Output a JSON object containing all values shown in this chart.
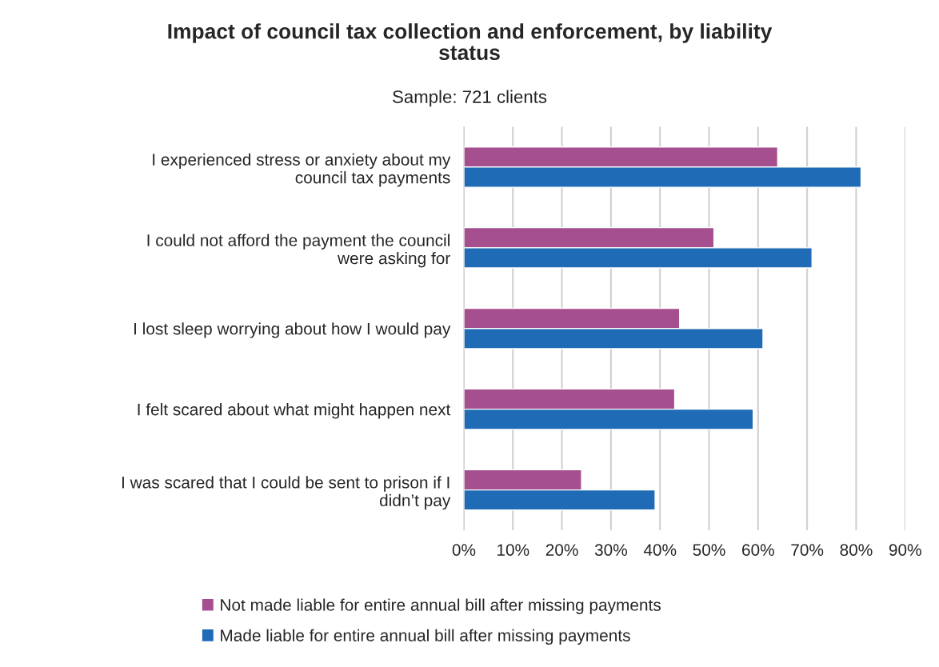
{
  "chart_data": {
    "type": "bar",
    "orientation": "horizontal",
    "title": "Impact of council tax collection and enforcement, by liability\nstatus",
    "subtitle": "Sample: 721 clients",
    "categories": [
      "I experienced stress or anxiety about my\ncouncil tax payments",
      "I could not afford the payment the council\nwere asking for",
      "I lost sleep worrying about how I would pay",
      "I felt scared about what might happen next",
      "I was scared that I could be sent to prison if I\ndidn’t pay"
    ],
    "series": [
      {
        "name": "Not made liable for entire annual bill after missing payments",
        "color": "#a64f8f",
        "values": [
          64,
          51,
          44,
          43,
          24
        ]
      },
      {
        "name": "Made liable for entire annual bill after missing payments",
        "color": "#1f6bb5",
        "values": [
          81,
          71,
          61,
          59,
          39
        ]
      }
    ],
    "xlim": [
      0,
      90
    ],
    "xticks": [
      {
        "value": 0,
        "label": "0%"
      },
      {
        "value": 10,
        "label": "10%"
      },
      {
        "value": 20,
        "label": "20%"
      },
      {
        "value": 30,
        "label": "30%"
      },
      {
        "value": 40,
        "label": "40%"
      },
      {
        "value": 50,
        "label": "50%"
      },
      {
        "value": 60,
        "label": "60%"
      },
      {
        "value": 70,
        "label": "70%"
      },
      {
        "value": 80,
        "label": "80%"
      },
      {
        "value": 90,
        "label": "90%"
      }
    ],
    "grid": "x",
    "legend": "bottom"
  }
}
